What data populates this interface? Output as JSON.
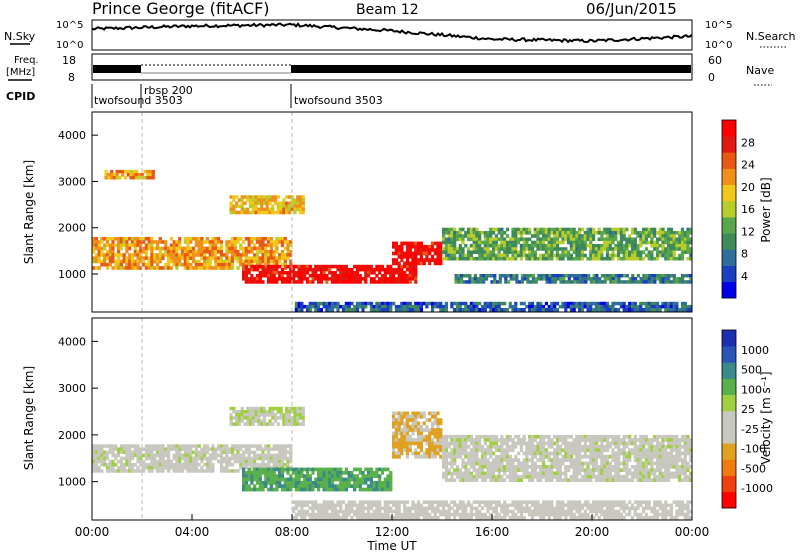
{
  "header": {
    "station": "Prince George (fitACF)",
    "beam": "Beam 12",
    "date": "06/Jun/2015"
  },
  "top_panels": {
    "nsky_label": "N.Sky",
    "nsearch_label": "N.Search",
    "nsky_ticks": [
      "10^5",
      "10^0"
    ],
    "nsky_right_ticks": [
      "10^5",
      "10^0"
    ],
    "freq_label_1": "Freq.",
    "freq_label_2": "[MHz]",
    "freq_ticks": [
      "18",
      "8"
    ],
    "nave_label": "Nave",
    "nave_ticks": [
      "60",
      "0"
    ],
    "cpid_label": "CPID",
    "cpid_segments": [
      {
        "name": "twofsound 3503",
        "start": 0,
        "end": 2
      },
      {
        "name": "rbsp 200",
        "start": 2,
        "end": 8
      },
      {
        "name": "twofsound 3503",
        "start": 8,
        "end": 24
      }
    ]
  },
  "power_panel": {
    "ylabel": "Slant Range [km]",
    "yticks": [
      "4000",
      "3000",
      "2000",
      "1000"
    ],
    "colorbar_label": "Power [dB]",
    "colorbar_ticks": [
      "28",
      "24",
      "20",
      "16",
      "12",
      "8",
      "4"
    ]
  },
  "velocity_panel": {
    "ylabel": "Slant Range [km]",
    "yticks": [
      "4000",
      "3000",
      "2000",
      "1000"
    ],
    "colorbar_label": "Velocity [m s⁻¹]",
    "colorbar_ticks": [
      "1000",
      "500",
      "100",
      "25",
      "-25",
      "-100",
      "-500",
      "-1000"
    ]
  },
  "xaxis": {
    "label": "Time UT",
    "ticks": [
      "00:00",
      "04:00",
      "08:00",
      "12:00",
      "16:00",
      "20:00",
      "00:00"
    ]
  },
  "colors": {
    "power_scale": [
      "#0000e6",
      "#1a3fbf",
      "#2f6e9a",
      "#3f8a5a",
      "#5aa64a",
      "#b8cc2a",
      "#f0c81a",
      "#f0901a",
      "#e85a14",
      "#e01a10",
      "#ff0000"
    ],
    "velocity_scale": [
      "#1c2fb0",
      "#2a55b8",
      "#3a8a8a",
      "#5ab04a",
      "#9fd040",
      "#c8c8c0",
      "#c8c8c0",
      "#e0a020",
      "#f07a10",
      "#f04010",
      "#ff0000"
    ]
  },
  "chart_data": [
    {
      "type": "line",
      "title": "N.Sky / N.Search",
      "x": [
        0,
        4,
        8,
        12,
        16,
        20,
        24
      ],
      "y_log": [
        3.5,
        4.0,
        4.2,
        3.2,
        1.8,
        1.5,
        2.3
      ],
      "ylim": [
        0,
        5
      ]
    },
    {
      "type": "heatmap",
      "title": "Power [dB]",
      "x_hours": [
        0,
        24
      ],
      "y_km": [
        180,
        4500
      ],
      "value_range": [
        0,
        30
      ],
      "bands": [
        {
          "t0": 0.0,
          "t1": 8.0,
          "r0": 1100,
          "r1": 1800,
          "value": 20
        },
        {
          "t0": 0.5,
          "t1": 2.5,
          "r0": 3050,
          "r1": 3250,
          "value": 20
        },
        {
          "t0": 5.5,
          "t1": 8.5,
          "r0": 2300,
          "r1": 2700,
          "value": 18
        },
        {
          "t0": 6.0,
          "t1": 13.0,
          "r0": 800,
          "r1": 1200,
          "value": 28
        },
        {
          "t0": 12.0,
          "t1": 14.0,
          "r0": 1200,
          "r1": 1700,
          "value": 28
        },
        {
          "t0": 14.0,
          "t1": 24.0,
          "r0": 1300,
          "r1": 2000,
          "value": 12
        },
        {
          "t0": 14.5,
          "t1": 24.0,
          "r0": 800,
          "r1": 1000,
          "value": 8
        },
        {
          "t0": 8.0,
          "t1": 24.0,
          "r0": 200,
          "r1": 400,
          "value": 6
        }
      ]
    },
    {
      "type": "heatmap",
      "title": "Velocity [m s-1]",
      "x_hours": [
        0,
        24
      ],
      "y_km": [
        180,
        4500
      ],
      "value_range": [
        -1000,
        1000
      ],
      "bands": [
        {
          "t0": 0.0,
          "t1": 8.0,
          "r0": 1200,
          "r1": 1800,
          "value": 0
        },
        {
          "t0": 5.5,
          "t1": 8.5,
          "r0": 2200,
          "r1": 2600,
          "value": 80
        },
        {
          "t0": 6.0,
          "t1": 12.0,
          "r0": 800,
          "r1": 1300,
          "value": 400
        },
        {
          "t0": 12.0,
          "t1": 14.0,
          "r0": 1500,
          "r1": 2500,
          "value": -300
        },
        {
          "t0": 14.0,
          "t1": 24.0,
          "r0": 1000,
          "r1": 2000,
          "value": 0
        },
        {
          "t0": 8.0,
          "t1": 24.0,
          "r0": 200,
          "r1": 600,
          "value": -100
        }
      ]
    }
  ]
}
